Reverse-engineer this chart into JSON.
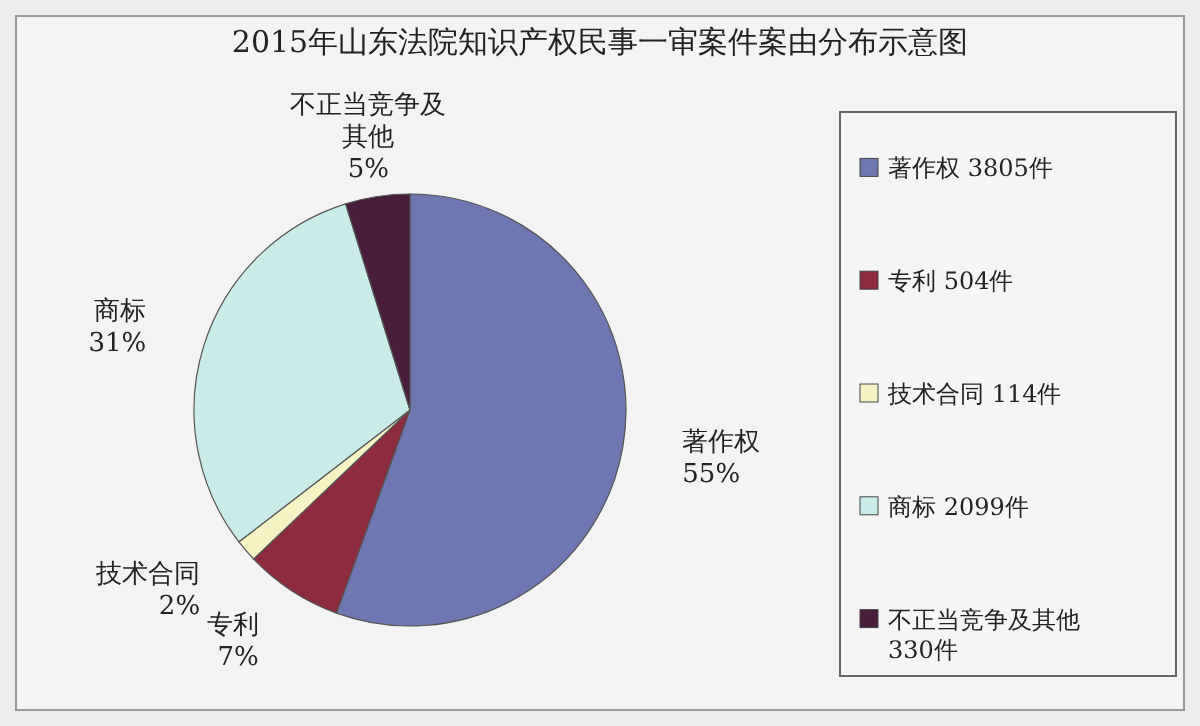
{
  "chart_data": {
    "type": "pie",
    "title": "2015年山东法院知识产权民事一审案件案由分布示意图",
    "categories": [
      "著作权",
      "专利",
      "技术合同",
      "商标",
      "不正当竞争及其他"
    ],
    "values": [
      3805,
      504,
      114,
      2099,
      330
    ],
    "value_labels": [
      "3805件",
      "504件",
      "114件",
      "2099件",
      "330件"
    ],
    "colors": [
      "#6f77b3",
      "#8e2b3e",
      "#f4f3c4",
      "#c9ece8",
      "#4b1d3c"
    ],
    "annotations": [
      {
        "text": "55%",
        "x": "著作权"
      },
      {
        "text": "7%",
        "x": "专利"
      },
      {
        "text": "2%",
        "x": "技术合同"
      },
      {
        "text": "31%",
        "x": "商标"
      },
      {
        "text": "5%",
        "x": "不正当竞争及其他"
      }
    ],
    "legend": "right"
  }
}
